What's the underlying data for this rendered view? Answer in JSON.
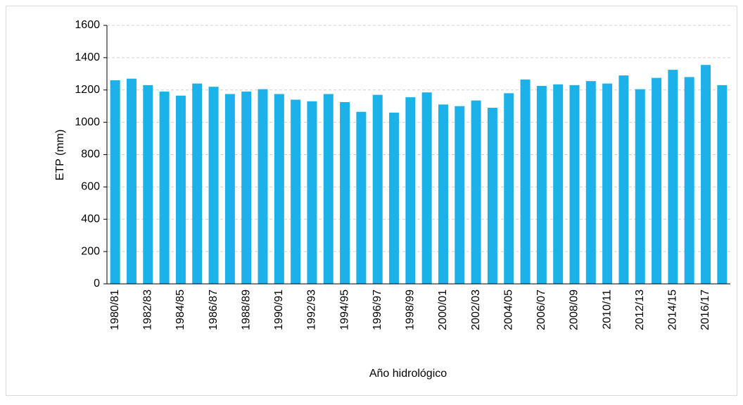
{
  "chart_data": {
    "type": "bar",
    "x_label": "Año hidrológico",
    "y_label": "ETP (mm)",
    "categories": [
      "1980/81",
      null,
      "1982/83",
      null,
      "1984/85",
      null,
      "1986/87",
      null,
      "1988/89",
      null,
      "1990/91",
      null,
      "1992/93",
      null,
      "1994/95",
      null,
      "1996/97",
      null,
      "1998/99",
      null,
      "2000/01",
      null,
      "2002/03",
      null,
      "2004/05",
      null,
      "2006/07",
      null,
      "2008/09",
      null,
      "2010/11",
      null,
      "2012/13",
      null,
      "2014/15",
      null,
      "2016/17",
      null
    ],
    "values": [
      1260,
      1270,
      1230,
      1190,
      1165,
      1240,
      1220,
      1175,
      1190,
      1205,
      1175,
      1140,
      1130,
      1175,
      1125,
      1065,
      1170,
      1060,
      1155,
      1185,
      1110,
      1100,
      1135,
      1090,
      1180,
      1265,
      1225,
      1235,
      1230,
      1255,
      1240,
      1290,
      1205,
      1275,
      1325,
      1280,
      1355,
      1230
    ],
    "color": "#1db1ea",
    "ylim": [
      0,
      1600
    ],
    "yticks": [
      0,
      200,
      400,
      600,
      800,
      1000,
      1200,
      1400,
      1600
    ],
    "grid": true
  }
}
